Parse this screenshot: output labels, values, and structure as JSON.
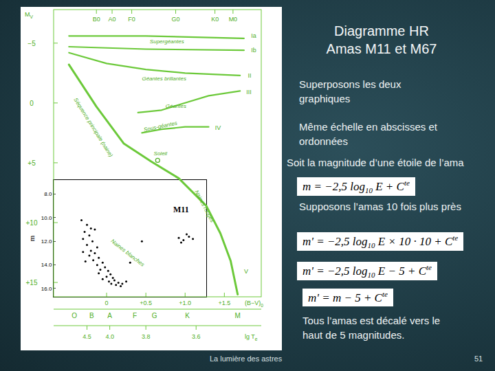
{
  "slide": {
    "title": [
      "Diagramme HR",
      "Amas M11 et M67"
    ],
    "blocks": [
      {
        "kind": "text",
        "lines": [
          "Superposons les deux",
          "graphiques"
        ]
      },
      {
        "kind": "text",
        "lines": [
          "Même échelle en abscisses et",
          "ordonnées"
        ]
      },
      {
        "kind": "text",
        "lines": [
          "Soit la magnitude d’une étoile de l’ama"
        ]
      },
      {
        "kind": "equation",
        "segments": [
          {
            "t": "m = −2,5 log"
          },
          {
            "sub": "10"
          },
          {
            "t": " E + C"
          },
          {
            "sup": "te"
          }
        ]
      },
      {
        "kind": "text",
        "lines": [
          "Supposons l’amas 10 fois plus près"
        ]
      },
      {
        "kind": "equation",
        "segments": [
          {
            "t": "m' = −2,5 log"
          },
          {
            "sub": "10"
          },
          {
            "t": " E × 10 · 10 + C"
          },
          {
            "sup": "te"
          }
        ]
      },
      {
        "kind": "equation",
        "segments": [
          {
            "t": "m' = −2,5 log"
          },
          {
            "sub": "10"
          },
          {
            "t": " E − 5 + C"
          },
          {
            "sup": "te"
          }
        ]
      },
      {
        "kind": "equation",
        "segments": [
          {
            "t": "m' = m − 5 + C"
          },
          {
            "sup": "te"
          }
        ]
      },
      {
        "kind": "text",
        "lines": [
          "Tous l’amas est décalé vers le",
          "haut de 5 magnitudes."
        ]
      }
    ],
    "footer": "La lumière des astres",
    "page": "51"
  },
  "hr_diagram": {
    "y_axis": {
      "title": {
        "text": "M",
        "sub": "V"
      },
      "lim": [
        -7.8,
        16.2
      ],
      "ticks": [
        {
          "value": -5,
          "label": "−5"
        },
        0,
        {
          "value": 5,
          "label": "+5"
        },
        {
          "value": 10,
          "label": "+10"
        },
        {
          "value": 15,
          "label": "+15"
        }
      ]
    },
    "x_axis": {
      "title": {
        "text": "(B−V)",
        "sub": "0"
      },
      "lim": [
        -0.675,
        1.97
      ],
      "ticks": [
        0,
        {
          "value": 0.5,
          "label": "+0.5"
        },
        {
          "value": 1,
          "label": "+1.0"
        },
        {
          "value": 1.5,
          "label": "+1.5"
        }
      ]
    },
    "top_spectral_ticks": [
      {
        "value": -0.13,
        "label": "B0"
      },
      {
        "value": 0.07,
        "label": "A0"
      },
      {
        "value": 0.32,
        "label": "F0"
      },
      {
        "value": 0.88,
        "label": "G0"
      },
      {
        "value": 1.38,
        "label": "K0"
      },
      {
        "value": 1.61,
        "label": "M0"
      }
    ],
    "bottom_spectral_ticks": [
      {
        "value": -0.41,
        "label": "O"
      },
      {
        "value": -0.19,
        "label": "B"
      },
      {
        "value": 0.04,
        "label": "A"
      },
      {
        "value": 0.36,
        "label": "F"
      },
      {
        "value": 0.61,
        "label": "G"
      },
      {
        "value": 1.03,
        "label": "K"
      },
      {
        "value": 1.67,
        "label": "M"
      }
    ],
    "temperature_axis": {
      "title": {
        "text": "lg T",
        "sub": "e"
      },
      "ticks": [
        {
          "value": -0.25,
          "label": "4.5"
        },
        {
          "value": 0.04,
          "label": "4.0"
        },
        {
          "value": 0.5,
          "label": "3.8"
        },
        {
          "value": 1.14,
          "label": "3.6"
        }
      ]
    },
    "curves": [
      {
        "name": "Ia",
        "points": [
          [
            -0.48,
            -5.6
          ],
          [
            0.5,
            -5.6
          ],
          [
            1.75,
            -5.4
          ]
        ],
        "label_at": [
          1.84,
          -5.6
        ]
      },
      {
        "name": "Ib",
        "points": [
          [
            -0.48,
            -4.7
          ],
          [
            0.5,
            -4.5
          ],
          [
            1.75,
            -4.4
          ]
        ],
        "label_at": [
          1.84,
          -4.4
        ]
      },
      {
        "name": "II",
        "points": [
          [
            -0.48,
            -4.2
          ],
          [
            0,
            -3.3
          ],
          [
            0.5,
            -2.8
          ],
          [
            1,
            -2.5
          ],
          [
            1.7,
            -2.3
          ]
        ],
        "label_at": [
          1.8,
          -2.3
        ]
      },
      {
        "name": "III",
        "points": [
          [
            0.4,
            0.8
          ],
          [
            0.7,
            0.6
          ],
          [
            1,
            0
          ],
          [
            1.3,
            -0.6
          ],
          [
            1.7,
            -1
          ]
        ],
        "label_at": [
          1.78,
          -0.9
        ]
      },
      {
        "name": "IV",
        "points": [
          [
            0.45,
            2.5
          ],
          [
            0.7,
            2.2
          ],
          [
            1,
            2
          ],
          [
            1.3,
            2
          ]
        ],
        "label_at": [
          1.38,
          2.1
        ]
      },
      {
        "name": "V",
        "points": [
          [
            -0.48,
            -3.2
          ],
          [
            -0.13,
            0.3
          ],
          [
            0.22,
            3.4
          ],
          [
            0.57,
            4.9
          ],
          [
            0.92,
            6.3
          ],
          [
            1.27,
            8.6
          ],
          [
            1.45,
            10.9
          ],
          [
            1.58,
            13.2
          ],
          [
            1.67,
            16
          ]
        ],
        "label_at": [
          1.75,
          14.1
        ]
      }
    ],
    "region_labels": [
      {
        "text": "Supergéantes",
        "at": [
          0.55,
          -5.0
        ]
      },
      {
        "text": "Géantes brillantes",
        "at": [
          0.45,
          -1.9
        ]
      },
      {
        "text": "Géantes",
        "at": [
          0.75,
          0.4
        ]
      },
      {
        "text": "Sous-géantes",
        "at": [
          0.48,
          2.4
        ]
      },
      {
        "text": "Séquence principale (naine)",
        "at": [
          -0.42,
          -0.3
        ]
      },
      {
        "text": "Soleil",
        "at": [
          0.6,
          4.4
        ]
      },
      {
        "text": "Naines blanches",
        "at": [
          0.05,
          11.6
        ]
      },
      {
        "text": "Naines rouges",
        "at": [
          1.12,
          7.4
        ]
      }
    ],
    "sun": [
      0.65,
      4.8
    ]
  },
  "chart_data": {
    "type": "scatter",
    "title": "M11",
    "y_label": "m",
    "x": [
      -0.25,
      -0.2,
      -0.28,
      -0.15,
      -0.22,
      -0.3,
      -0.18,
      -0.25,
      -0.12,
      -0.2,
      -0.15,
      -0.22,
      -0.1,
      -0.17,
      -0.05,
      -0.12,
      -0.02,
      -0.08,
      0.02,
      -0.1,
      0.05,
      0,
      0.08,
      -0.05,
      0.1,
      0.03,
      0.15,
      0.06,
      0.12,
      0.2,
      0.18,
      -0.32,
      -0.27,
      -0.3,
      0.25,
      0.92,
      0.98,
      1.05,
      1.1,
      0.95,
      1.02,
      0.45,
      0.3
    ],
    "values": [
      10.6,
      10.9,
      11.2,
      11.0,
      11.5,
      11.8,
      12.0,
      12.3,
      12.5,
      12.8,
      13.0,
      13.2,
      13.4,
      13.6,
      13.8,
      14.0,
      14.2,
      14.4,
      14.5,
      14.7,
      14.8,
      15.0,
      15.1,
      15.2,
      15.3,
      15.4,
      15.5,
      15.6,
      15.7,
      15.6,
      15.8,
      10.2,
      13.7,
      12.9,
      15.4,
      11.7,
      11.9,
      11.6,
      11.8,
      12.1,
      11.4,
      12.0,
      13.8
    ],
    "color": "#000000",
    "marker": "dot",
    "xlim": [
      -0.675,
      1.27
    ],
    "ylim": [
      16.7,
      6.8
    ],
    "yticks": [
      {
        "value": 8,
        "label": "8.0"
      },
      {
        "value": 10,
        "label": "10.0"
      },
      {
        "value": 12,
        "label": "12.0"
      },
      {
        "value": 14,
        "label": "14.0"
      },
      {
        "value": 16,
        "label": "16.0"
      }
    ],
    "tick_labels": "y",
    "grid": false,
    "title_at": [
      0.95,
      9.3
    ]
  }
}
